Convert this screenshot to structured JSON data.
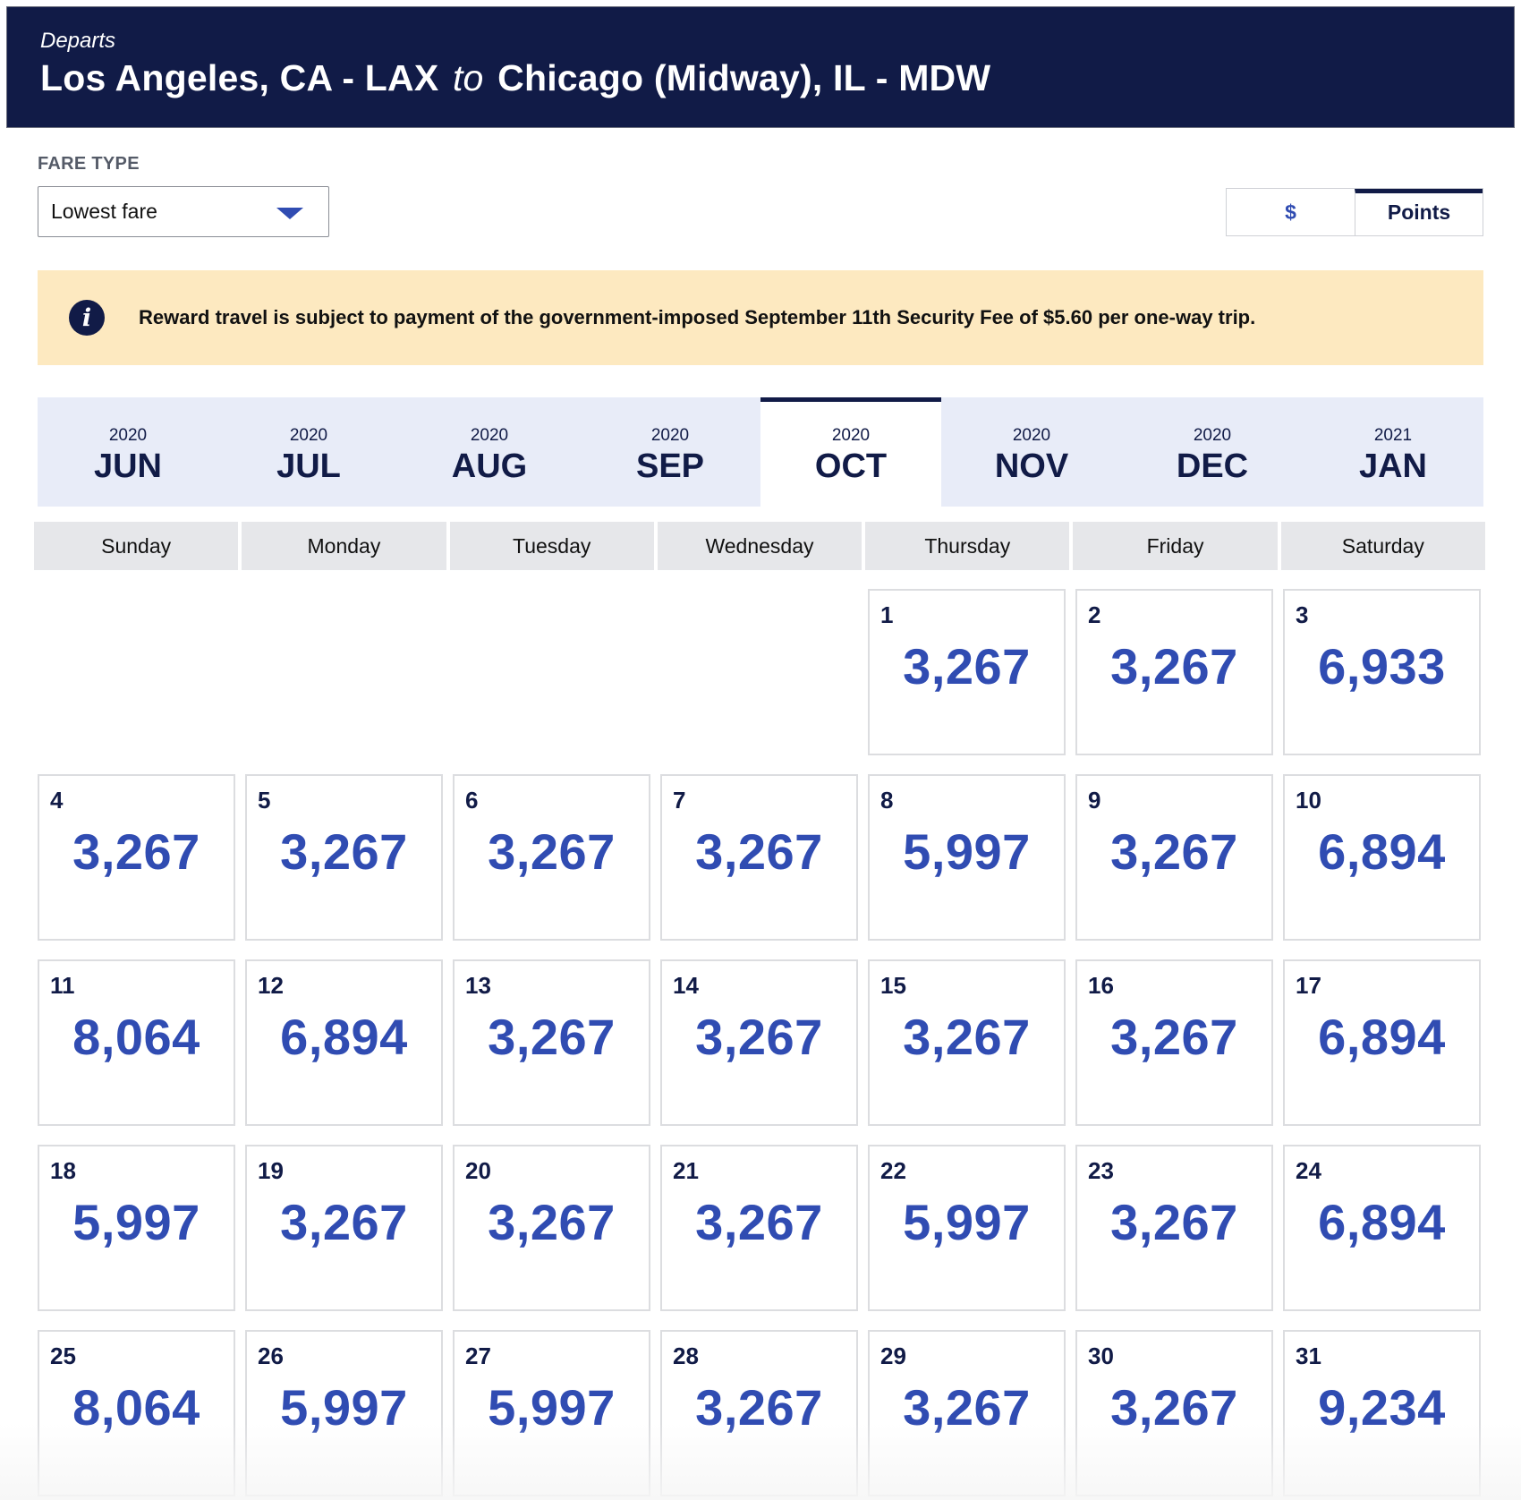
{
  "header": {
    "departs_label": "Departs",
    "origin": "Los Angeles, CA - LAX",
    "to_word": "to",
    "destination": "Chicago (Midway), IL - MDW"
  },
  "fare_type": {
    "label": "FARE TYPE",
    "selected": "Lowest fare"
  },
  "currency_toggle": {
    "dollars_label": "$",
    "points_label": "Points",
    "active": "Points"
  },
  "notice": {
    "text": "Reward travel is subject to payment of the government-imposed September 11th Security Fee of $5.60 per one-way trip."
  },
  "months": [
    {
      "year": "2020",
      "month": "JUN"
    },
    {
      "year": "2020",
      "month": "JUL"
    },
    {
      "year": "2020",
      "month": "AUG"
    },
    {
      "year": "2020",
      "month": "SEP"
    },
    {
      "year": "2020",
      "month": "OCT",
      "active": true
    },
    {
      "year": "2020",
      "month": "NOV"
    },
    {
      "year": "2020",
      "month": "DEC"
    },
    {
      "year": "2021",
      "month": "JAN"
    }
  ],
  "weekdays": [
    "Sunday",
    "Monday",
    "Tuesday",
    "Wednesday",
    "Thursday",
    "Friday",
    "Saturday"
  ],
  "calendar": {
    "leading_blanks": 4,
    "days": [
      {
        "day": "1",
        "price": "3,267"
      },
      {
        "day": "2",
        "price": "3,267"
      },
      {
        "day": "3",
        "price": "6,933"
      },
      {
        "day": "4",
        "price": "3,267"
      },
      {
        "day": "5",
        "price": "3,267"
      },
      {
        "day": "6",
        "price": "3,267"
      },
      {
        "day": "7",
        "price": "3,267"
      },
      {
        "day": "8",
        "price": "5,997"
      },
      {
        "day": "9",
        "price": "3,267"
      },
      {
        "day": "10",
        "price": "6,894"
      },
      {
        "day": "11",
        "price": "8,064"
      },
      {
        "day": "12",
        "price": "6,894"
      },
      {
        "day": "13",
        "price": "3,267"
      },
      {
        "day": "14",
        "price": "3,267"
      },
      {
        "day": "15",
        "price": "3,267"
      },
      {
        "day": "16",
        "price": "3,267"
      },
      {
        "day": "17",
        "price": "6,894"
      },
      {
        "day": "18",
        "price": "5,997"
      },
      {
        "day": "19",
        "price": "3,267"
      },
      {
        "day": "20",
        "price": "3,267"
      },
      {
        "day": "21",
        "price": "3,267"
      },
      {
        "day": "22",
        "price": "5,997"
      },
      {
        "day": "23",
        "price": "3,267"
      },
      {
        "day": "24",
        "price": "6,894"
      },
      {
        "day": "25",
        "price": "8,064"
      },
      {
        "day": "26",
        "price": "5,997"
      },
      {
        "day": "27",
        "price": "5,997"
      },
      {
        "day": "28",
        "price": "3,267"
      },
      {
        "day": "29",
        "price": "3,267"
      },
      {
        "day": "30",
        "price": "3,267"
      },
      {
        "day": "31",
        "price": "9,234"
      }
    ]
  },
  "colors": {
    "header_bg": "#111b47",
    "accent_blue": "#304cb2",
    "notice_bg": "#fde9c0",
    "month_bar_bg": "#e8ecf8"
  }
}
